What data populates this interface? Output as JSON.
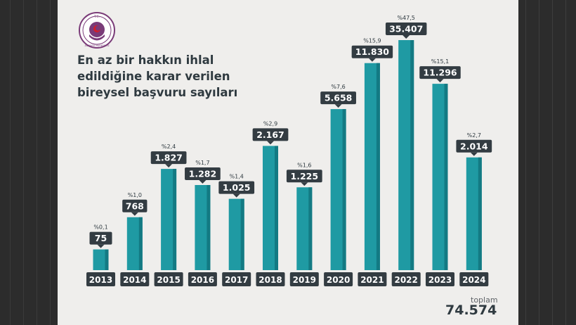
{
  "title_lines": [
    "En az bir hakkın ihlal",
    "edildiğine karar verilen",
    "bireysel başvuru sayıları"
  ],
  "logo": {
    "icon": "constitutional-court-emblem",
    "top_text": "T.C.",
    "bottom_text": "ANAYASA MAHKEMESİ",
    "color": "#7a3b78"
  },
  "total": {
    "label": "toplam",
    "value": "74.574"
  },
  "colors": {
    "bar": "#1f9aa3",
    "bar_dark": "#137a83",
    "label_bg": "#333c42",
    "label_text": "#ffffff",
    "text": "#2f3a40"
  },
  "chart_data": {
    "type": "bar",
    "categories": [
      "2013",
      "2014",
      "2015",
      "2016",
      "2017",
      "2018",
      "2019",
      "2020",
      "2021",
      "2022",
      "2023",
      "2024"
    ],
    "values": [
      75,
      768,
      1827,
      1282,
      1025,
      2167,
      1225,
      5658,
      11830,
      35407,
      11296,
      2014
    ],
    "value_labels": [
      "75",
      "768",
      "1.827",
      "1.282",
      "1.025",
      "2.167",
      "1.225",
      "5.658",
      "11.830",
      "35.407",
      "11.296",
      "2.014"
    ],
    "percent_labels": [
      "%0,1",
      "%1,0",
      "%2,4",
      "%1,7",
      "%1,4",
      "%2,9",
      "%1,6",
      "%7,6",
      "%15,9",
      "%47,5",
      "%15,1",
      "%2,7"
    ],
    "bar_levels": [
      0.09,
      0.23,
      0.44,
      0.37,
      0.31,
      0.54,
      0.36,
      0.7,
      0.9,
      1.0,
      0.81,
      0.49
    ],
    "scale_note": "bar heights are non-linear in the original",
    "xlabel": "",
    "ylabel": ""
  }
}
